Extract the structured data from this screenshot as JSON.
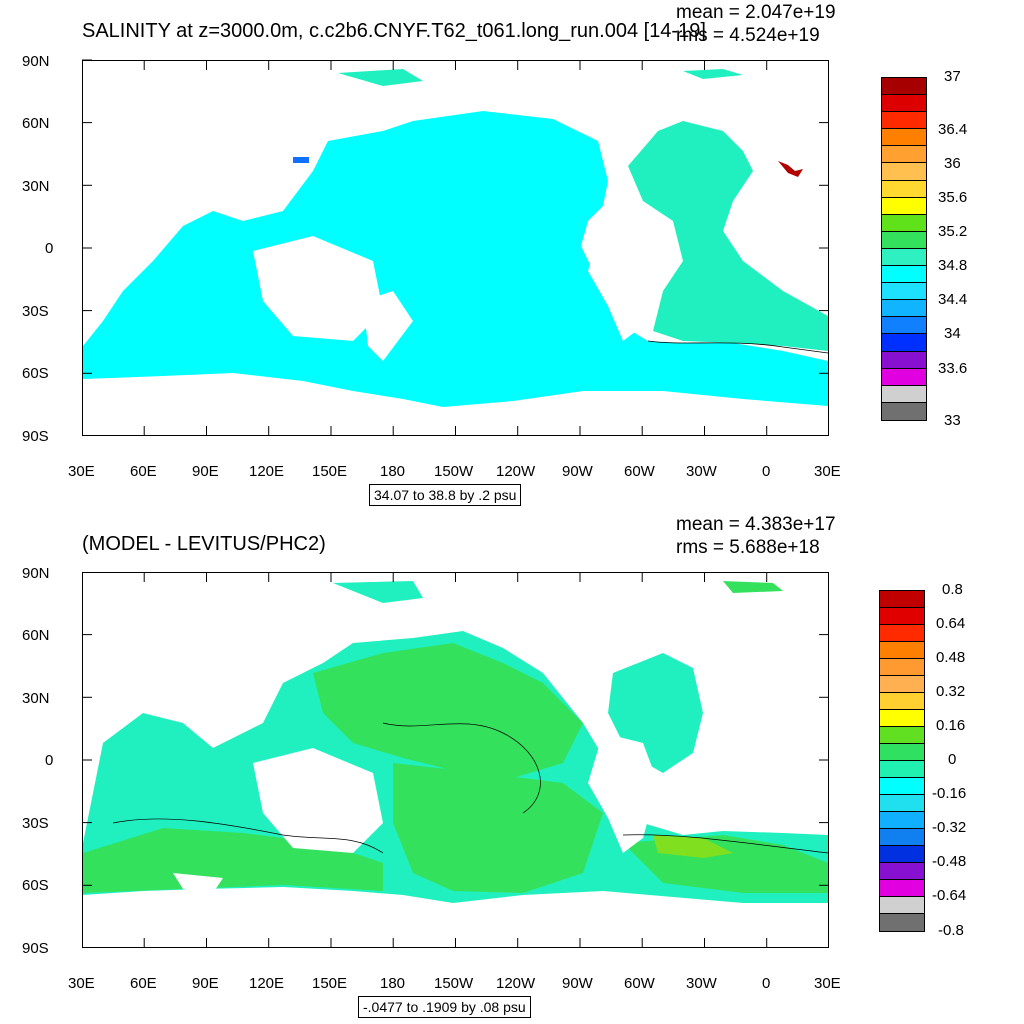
{
  "panels": [
    {
      "title": "SALINITY at z=3000.0m, c.c2b6.CNYF.T62_t061.long_run.004 [14-19]",
      "mean": "mean = 2.047e+19",
      "rms": "rms = 4.524e+19",
      "contour_info": "34.07 to 38.8 by .2 psu",
      "lat_labels": [
        "90N",
        "60N",
        "30N",
        "0",
        "30S",
        "60S",
        "90S"
      ],
      "lon_labels": [
        "30E",
        "60E",
        "90E",
        "120E",
        "150E",
        "180",
        "150W",
        "120W",
        "90W",
        "60W",
        "30W",
        "0",
        "30E"
      ],
      "colorbar": {
        "colors": [
          "#a60000",
          "#dd0000",
          "#ff2a00",
          "#ff7f00",
          "#ffa030",
          "#ffc050",
          "#ffd830",
          "#ffff00",
          "#5fe21a",
          "#34e15d",
          "#2ef0c0",
          "#00ffff",
          "#1ee0ff",
          "#10b4ff",
          "#1080ff",
          "#0030ff",
          "#8810d0",
          "#e000e0",
          "#d0d0d0",
          "#707070"
        ],
        "labels": [
          "37",
          "36.4",
          "36",
          "35.6",
          "35.2",
          "34.8",
          "34.4",
          "34",
          "33.6",
          "33"
        ]
      }
    },
    {
      "title": "(MODEL - LEVITUS/PHC2)",
      "mean": "mean = 4.383e+17",
      "rms": "rms = 5.688e+18",
      "contour_info": "-.0477 to .1909 by .08 psu",
      "lat_labels": [
        "90N",
        "60N",
        "30N",
        "0",
        "30S",
        "60S",
        "90S"
      ],
      "lon_labels": [
        "30E",
        "60E",
        "90E",
        "120E",
        "150E",
        "180",
        "150W",
        "120W",
        "90W",
        "60W",
        "30W",
        "0",
        "30E"
      ],
      "colorbar": {
        "colors": [
          "#c00000",
          "#e00000",
          "#ff2a00",
          "#ff7f00",
          "#ff9a30",
          "#ffb050",
          "#ffd030",
          "#ffff00",
          "#60e020",
          "#30e060",
          "#20f0b0",
          "#00ffff",
          "#20e0f0",
          "#10b0ff",
          "#1080f0",
          "#0030e0",
          "#8810d0",
          "#e000e0",
          "#d0d0d0",
          "#707070"
        ],
        "labels": [
          "0.8",
          "0.64",
          "0.48",
          "0.32",
          "0.16",
          "0",
          "-0.16",
          "-0.32",
          "-0.48",
          "-0.64",
          "-0.8"
        ]
      }
    }
  ]
}
